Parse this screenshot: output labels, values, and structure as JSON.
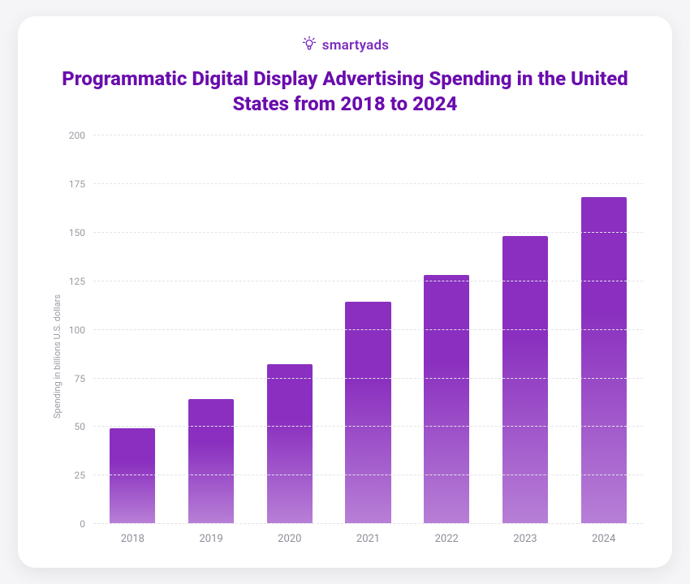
{
  "logo": {
    "text": "smartyads"
  },
  "chart": {
    "type": "bar",
    "title": "Programmatic Digital Display Advertising Spending in the United States from 2018 to 2024",
    "title_color": "#6a0dad",
    "title_fontsize": 24,
    "ylabel": "Spending in billions U.S. dollars",
    "ylabel_fontsize": 11,
    "ylabel_color": "#9a9aa5",
    "categories": [
      "2018",
      "2019",
      "2020",
      "2021",
      "2022",
      "2023",
      "2024"
    ],
    "values": [
      49,
      64,
      82,
      114,
      128,
      148,
      168
    ],
    "ylim": [
      0,
      200
    ],
    "ytick_step": 25,
    "yticks": [
      0,
      25,
      50,
      75,
      100,
      125,
      150,
      175,
      200
    ],
    "grid_color": "#e3e3ea",
    "grid_dash": "2,4",
    "tick_color": "#9a9aa5",
    "tick_fontsize": 12,
    "bar_gradient_top": "#8a2fbf",
    "bar_gradient_bottom": "#b77fd6",
    "bar_width_ratio": 0.58,
    "background_color": "#ffffff",
    "card_radius": 22,
    "page_background": "#f5f5f7"
  }
}
